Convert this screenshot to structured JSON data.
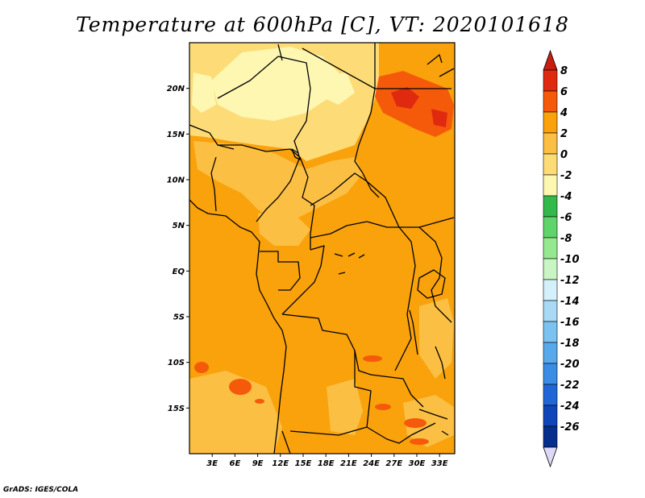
{
  "title": "Temperature at 600hPa [C], VT: 2020101618",
  "credit": "GrADS: IGES/COLA",
  "map": {
    "lat_range": [
      -20,
      25
    ],
    "lon_range": [
      0,
      35
    ],
    "lat_ticks": [
      {
        "value": 20,
        "label": "20N"
      },
      {
        "value": 15,
        "label": "15N"
      },
      {
        "value": 10,
        "label": "10N"
      },
      {
        "value": 5,
        "label": "5N"
      },
      {
        "value": 0,
        "label": "EQ"
      },
      {
        "value": -5,
        "label": "5S"
      },
      {
        "value": -10,
        "label": "10S"
      },
      {
        "value": -15,
        "label": "15S"
      }
    ],
    "lon_ticks": [
      {
        "value": 3,
        "label": "3E"
      },
      {
        "value": 6,
        "label": "6E"
      },
      {
        "value": 9,
        "label": "9E"
      },
      {
        "value": 12,
        "label": "12E"
      },
      {
        "value": 15,
        "label": "15E"
      },
      {
        "value": 18,
        "label": "18E"
      },
      {
        "value": 21,
        "label": "21E"
      },
      {
        "value": 24,
        "label": "24E"
      },
      {
        "value": 27,
        "label": "27E"
      },
      {
        "value": 30,
        "label": "30E"
      },
      {
        "value": 33,
        "label": "33E"
      }
    ],
    "base_color": "#f9a20c"
  },
  "colorbar": {
    "levels": [
      "8",
      "6",
      "4",
      "2",
      "0",
      "-2",
      "-4",
      "-6",
      "-8",
      "-10",
      "-12",
      "-14",
      "-16",
      "-18",
      "-20",
      "-22",
      "-24",
      "-26"
    ],
    "colors": [
      "#e02a10",
      "#f55a0a",
      "#f9a20c",
      "#fbbf44",
      "#fddc78",
      "#fef7b2",
      "#33b84b",
      "#5fd46a",
      "#96e890",
      "#c8f5c3",
      "#d4f0fb",
      "#a9d9f5",
      "#7cc2f0",
      "#58a9ec",
      "#3a8ce5",
      "#2166d6",
      "#0f45b8",
      "#062e8c",
      "#050c52"
    ],
    "top_arrow_color": "#c81e10",
    "bottom_arrow_color": "#dcd8f5"
  }
}
